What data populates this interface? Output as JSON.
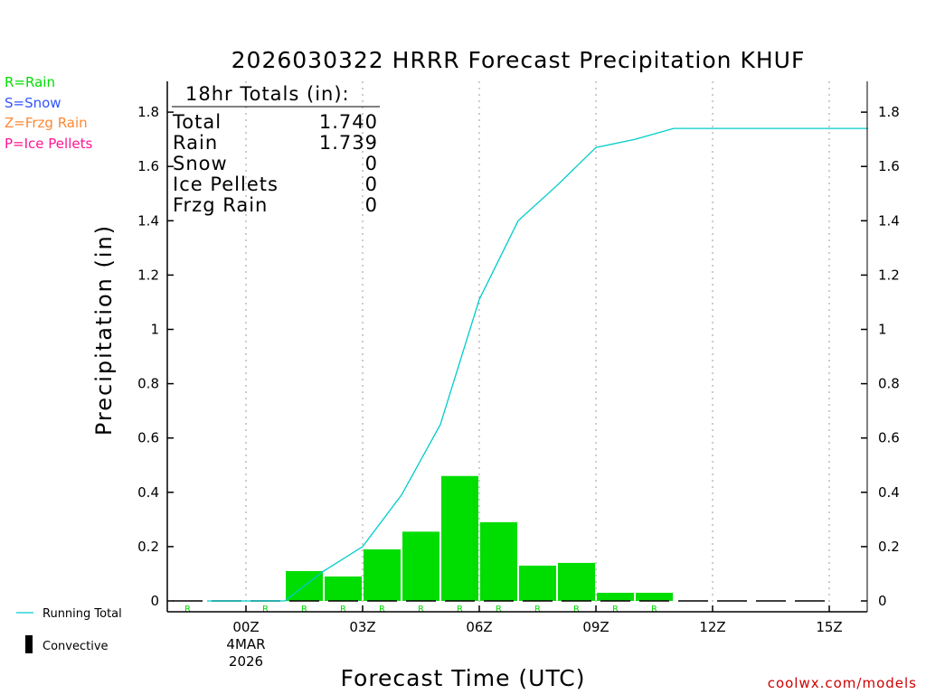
{
  "colors": {
    "rain": "#00dd00",
    "snow": "#3355ff",
    "frzg_rain": "#ff8833",
    "ice_pellets": "#ff1493",
    "running_total": "#00cccc",
    "credit": "#cc0000",
    "grid": "#999999"
  },
  "legend": {
    "rain": "R=Rain",
    "snow": "S=Snow",
    "frzg_rain": "Z=Frzg Rain",
    "ice_pellets": "P=Ice Pellets",
    "running_total": "Running Total",
    "convective": "Convective"
  },
  "totals_box": {
    "header": "18hr Totals (in):",
    "rows": [
      {
        "label": "Total",
        "value": "1.740"
      },
      {
        "label": "Rain",
        "value": "1.739"
      },
      {
        "label": "Snow",
        "value": "0"
      },
      {
        "label": "Ice Pellets",
        "value": "0"
      },
      {
        "label": "Frzg Rain",
        "value": "0"
      }
    ]
  },
  "credit": "coolwx.com/models",
  "chart_data": {
    "type": "bar",
    "title": "2026030322 HRRR Forecast Precipitation KHUF",
    "xlabel": "Forecast Time (UTC)",
    "ylabel": "Precipitation (in)",
    "ylim": [
      0,
      1.9
    ],
    "xlim_hours": [
      -2.1,
      16
    ],
    "y_ticks": [
      0,
      0.2,
      0.4,
      0.6,
      0.8,
      1,
      1.2,
      1.4,
      1.6,
      1.8
    ],
    "y_tick_labels": [
      "0",
      "0.2",
      "0.4",
      "0.6",
      "0.8",
      "1",
      "1.2",
      "1.4",
      "1.6",
      "1.8"
    ],
    "x_ticks": [
      {
        "hour": 0,
        "label": "00Z",
        "sub1": "4MAR",
        "sub2": "2026"
      },
      {
        "hour": 3,
        "label": "03Z"
      },
      {
        "hour": 6,
        "label": "06Z"
      },
      {
        "hour": 9,
        "label": "09Z"
      },
      {
        "hour": 12,
        "label": "12Z"
      },
      {
        "hour": 15,
        "label": "15Z"
      }
    ],
    "hourly_hours": [
      -1,
      0,
      1,
      2,
      3,
      4,
      5,
      6,
      7,
      8,
      9,
      10,
      11,
      12,
      13,
      14,
      15,
      16
    ],
    "hourly_precip": [
      0,
      0,
      0,
      0.11,
      0.09,
      0.19,
      0.255,
      0.46,
      0.29,
      0.13,
      0.14,
      0.03,
      0.03,
      0,
      0,
      0,
      0,
      0
    ],
    "precip_types": [
      "R",
      "",
      "R",
      "R",
      "R",
      "R",
      "R",
      "R",
      "R",
      "R",
      "R",
      "R",
      "R",
      "",
      "",
      "",
      "",
      ""
    ],
    "running_total": {
      "hours": [
        -1,
        0,
        1,
        2,
        3,
        4,
        5,
        6,
        7,
        8,
        9,
        10,
        11,
        12,
        13,
        14,
        15,
        16
      ],
      "values": [
        0,
        0,
        0,
        0.11,
        0.2,
        0.39,
        0.65,
        1.11,
        1.4,
        1.53,
        1.67,
        1.7,
        1.74,
        1.74,
        1.74,
        1.74,
        1.74,
        1.74
      ]
    },
    "series": [
      {
        "name": "Rain",
        "type": "bar"
      },
      {
        "name": "Running Total",
        "type": "line"
      },
      {
        "name": "Convective",
        "type": "bar"
      }
    ],
    "grid": "vertical-dotted-at-3h",
    "legend_position": "left"
  }
}
